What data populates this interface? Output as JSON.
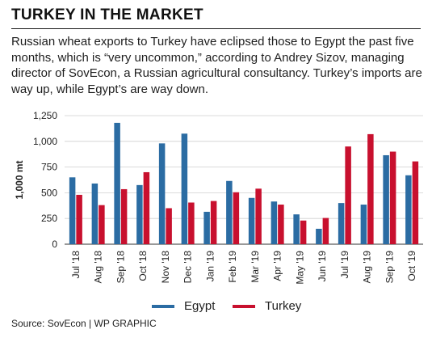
{
  "header": {
    "title": "TURKEY IN THE MARKET",
    "subtitle": "Russian wheat exports to Turkey have eclipsed those to Egypt the past five months, which is “very uncommon,” according to Andrey Sizov, managing director of SovEcon, a Russian agricultural consultancy. Turkey’s imports are way up, while Egypt’s are way down."
  },
  "footer": {
    "source": "Source: SovEcon | WP GRAPHIC"
  },
  "chart_data": {
    "type": "bar",
    "ylabel": "1,000 mt",
    "xlabel": "",
    "ylim": [
      0,
      1250
    ],
    "yticks": [
      0,
      250,
      500,
      750,
      1000,
      1250
    ],
    "ytick_labels": [
      "0",
      "250",
      "500",
      "750",
      "1,000",
      "1,250"
    ],
    "grid": "horizontal",
    "legend_position": "bottom",
    "categories": [
      "Jul '18",
      "Aug '18",
      "Sep '18",
      "Oct '18",
      "Nov '18",
      "Dec '18",
      "Jan '19",
      "Feb '19",
      "Mar '19",
      "Apr '19",
      "May '19",
      "Jun '19",
      "Jul '19",
      "Aug '19",
      "Sep '19",
      "Oct '19"
    ],
    "series": [
      {
        "name": "Egypt",
        "color": "#2b6ca3",
        "values": [
          650,
          590,
          1180,
          575,
          980,
          1075,
          315,
          615,
          450,
          415,
          290,
          150,
          400,
          385,
          865,
          670
        ]
      },
      {
        "name": "Turkey",
        "color": "#c8102e",
        "values": [
          480,
          380,
          535,
          700,
          350,
          405,
          420,
          505,
          540,
          385,
          230,
          255,
          950,
          1070,
          900,
          805
        ]
      }
    ]
  }
}
